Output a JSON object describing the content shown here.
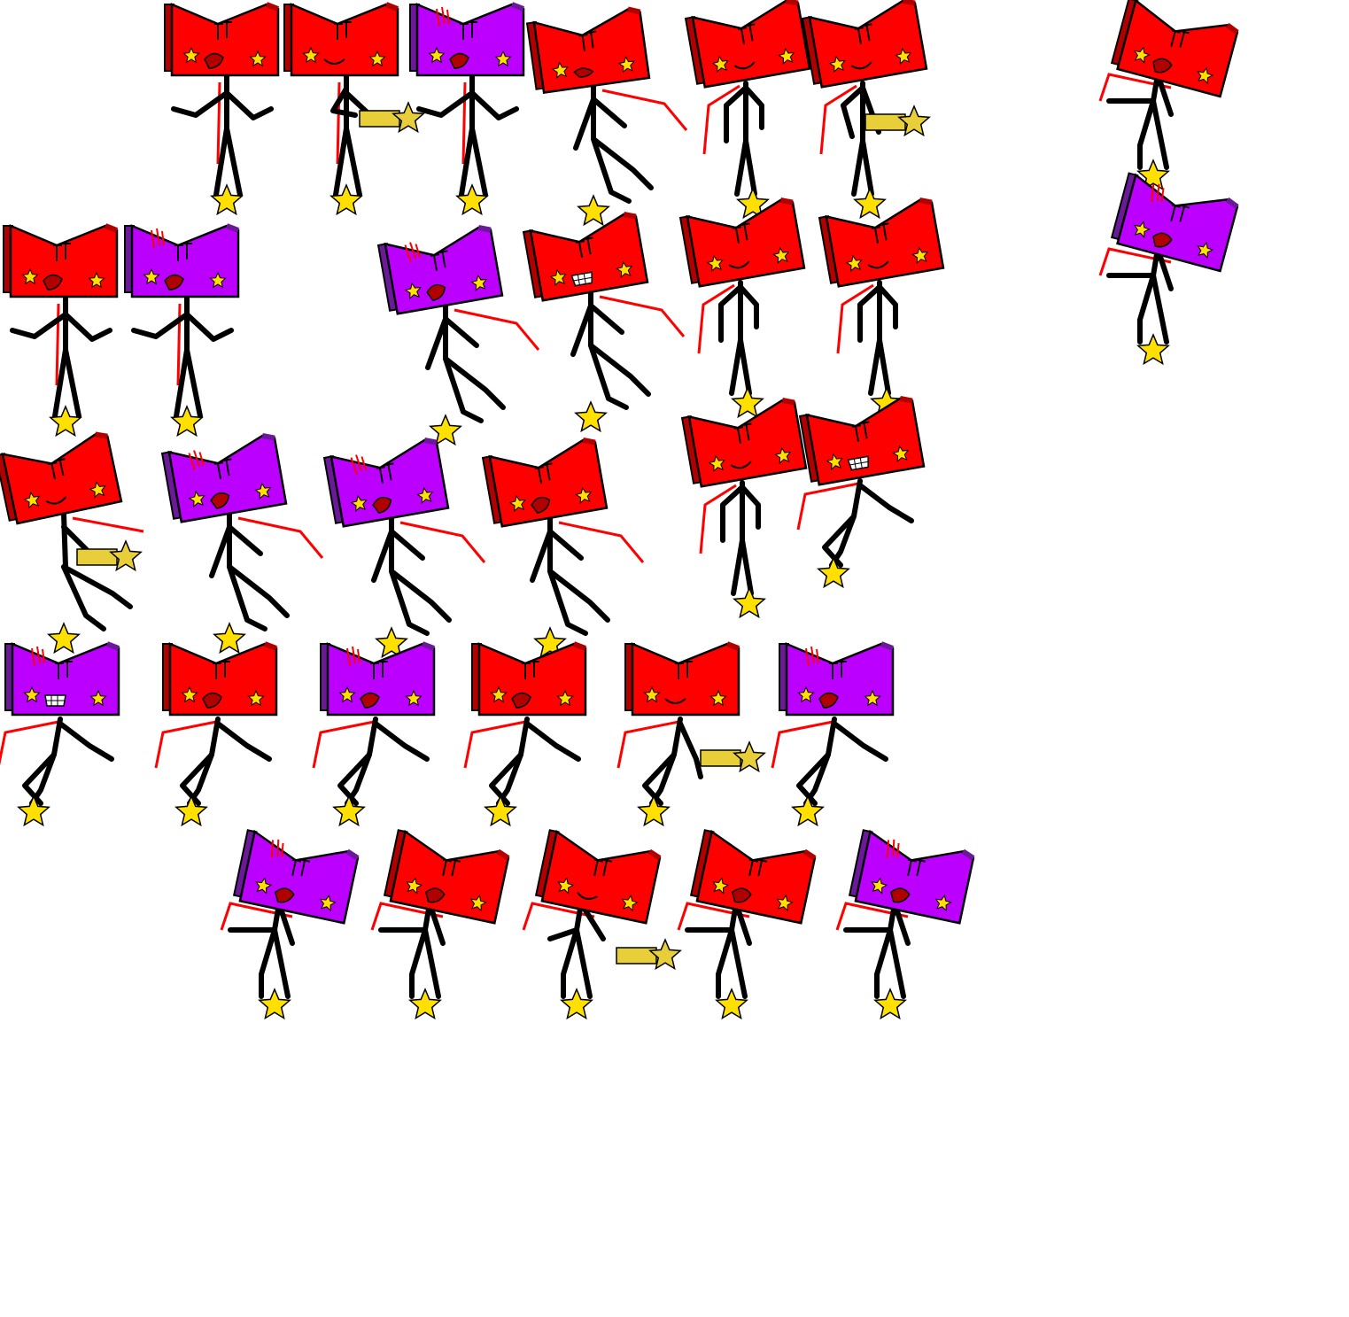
{
  "sheet": {
    "background": "#ffffff"
  },
  "palette": {
    "red_face": "#ff0000",
    "red_shade": "#b00000",
    "purple_face": "#bb00ff",
    "purple_shade": "#6a1a99",
    "outline": "#000000",
    "limb": "#000000",
    "star": "#ffe000",
    "scarf": "#ff0000",
    "mouth": "#b00000",
    "wand": "#e8cf3a"
  },
  "sprites": [
    {
      "row": 1,
      "index": 1,
      "color": "red",
      "pose": "idle-arms-out",
      "expression": "tongue"
    },
    {
      "row": 1,
      "index": 2,
      "color": "red",
      "pose": "holding-wand",
      "expression": "smile"
    },
    {
      "row": 1,
      "index": 3,
      "color": "purple",
      "pose": "idle-arms-out",
      "expression": "tongue"
    },
    {
      "row": 1,
      "index": 4,
      "color": "red",
      "pose": "walking",
      "expression": "grimace"
    },
    {
      "row": 1,
      "index": 5,
      "color": "red",
      "pose": "standing",
      "expression": "smile"
    },
    {
      "row": 1,
      "index": 6,
      "color": "red",
      "pose": "pointing-wand",
      "expression": "smile"
    },
    {
      "row": 1,
      "index": 7,
      "color": "red",
      "pose": "dashing",
      "expression": "tongue"
    },
    {
      "row": 2,
      "index": 1,
      "color": "red",
      "pose": "idle-arms-out",
      "expression": "tongue"
    },
    {
      "row": 2,
      "index": 2,
      "color": "purple",
      "pose": "idle-arms-out",
      "expression": "tongue"
    },
    {
      "row": 2,
      "index": 3,
      "color": "purple",
      "pose": "walking",
      "expression": "tongue"
    },
    {
      "row": 2,
      "index": 4,
      "color": "red",
      "pose": "walking",
      "expression": "teeth"
    },
    {
      "row": 2,
      "index": 5,
      "color": "red",
      "pose": "standing",
      "expression": "smile"
    },
    {
      "row": 2,
      "index": 6,
      "color": "red",
      "pose": "standing",
      "expression": "smile"
    },
    {
      "row": 2,
      "index": 7,
      "color": "purple",
      "pose": "dashing",
      "expression": "tongue"
    },
    {
      "row": 3,
      "index": 1,
      "color": "red",
      "pose": "walking-wand",
      "expression": "smile"
    },
    {
      "row": 3,
      "index": 2,
      "color": "purple",
      "pose": "walking",
      "expression": "tongue"
    },
    {
      "row": 3,
      "index": 3,
      "color": "purple",
      "pose": "walking",
      "expression": "tongue"
    },
    {
      "row": 3,
      "index": 4,
      "color": "red",
      "pose": "walking",
      "expression": "tongue"
    },
    {
      "row": 3,
      "index": 5,
      "color": "red",
      "pose": "standing",
      "expression": "smile"
    },
    {
      "row": 3,
      "index": 6,
      "color": "red",
      "pose": "crouch",
      "expression": "teeth"
    },
    {
      "row": 4,
      "index": 1,
      "color": "purple",
      "pose": "crouch",
      "expression": "teeth"
    },
    {
      "row": 4,
      "index": 2,
      "color": "red",
      "pose": "crouch",
      "expression": "tongue"
    },
    {
      "row": 4,
      "index": 3,
      "color": "purple",
      "pose": "crouch",
      "expression": "tongue"
    },
    {
      "row": 4,
      "index": 4,
      "color": "red",
      "pose": "crouch",
      "expression": "tongue"
    },
    {
      "row": 4,
      "index": 5,
      "color": "red",
      "pose": "crouch-wand",
      "expression": "smile"
    },
    {
      "row": 4,
      "index": 6,
      "color": "purple",
      "pose": "crouch",
      "expression": "tongue"
    },
    {
      "row": 5,
      "index": 1,
      "color": "purple",
      "pose": "dashing",
      "expression": "tongue"
    },
    {
      "row": 5,
      "index": 2,
      "color": "red",
      "pose": "dashing",
      "expression": "tongue"
    },
    {
      "row": 5,
      "index": 3,
      "color": "red",
      "pose": "dashing-wand",
      "expression": "smile"
    },
    {
      "row": 5,
      "index": 4,
      "color": "red",
      "pose": "dashing",
      "expression": "tongue"
    },
    {
      "row": 5,
      "index": 5,
      "color": "purple",
      "pose": "dashing",
      "expression": "tongue"
    }
  ]
}
